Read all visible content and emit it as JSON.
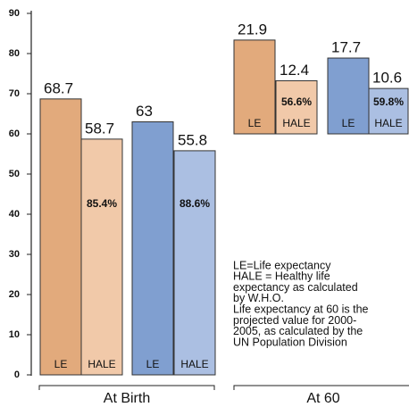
{
  "chart_data": [
    {
      "type": "bar",
      "xlabel": "At Birth",
      "categories": [
        "LE",
        "HALE",
        "LE",
        "HALE"
      ],
      "values": [
        68.7,
        58.7,
        63,
        55.8
      ],
      "colors": [
        "#e2aa7c",
        "#f1c9a9",
        "#809fd0",
        "#abbfe2"
      ],
      "inner_labels": [
        null,
        "85.4%",
        null,
        "88.6%"
      ],
      "ylim": [
        0,
        90
      ],
      "yticks": [
        0,
        10,
        20,
        30,
        40,
        50,
        60,
        70,
        80,
        90
      ]
    },
    {
      "type": "bar",
      "xlabel": "At 60",
      "categories": [
        "LE",
        "HALE",
        "LE",
        "HALE"
      ],
      "values": [
        21.9,
        12.4,
        17.7,
        10.6
      ],
      "colors": [
        "#e2aa7c",
        "#f1c9a9",
        "#809fd0",
        "#abbfe2"
      ],
      "inner_labels": [
        null,
        "56.6%",
        null,
        "59.8%"
      ]
    }
  ],
  "notes": [
    "LE=Life expectancy",
    "HALE = Healthy life",
    "expectancy as calculated",
    "by W.H.O.",
    "Life expectancy at 60 is the",
    "projected value for 2000-",
    "2005, as calculated by the",
    "UN Population Division"
  ]
}
